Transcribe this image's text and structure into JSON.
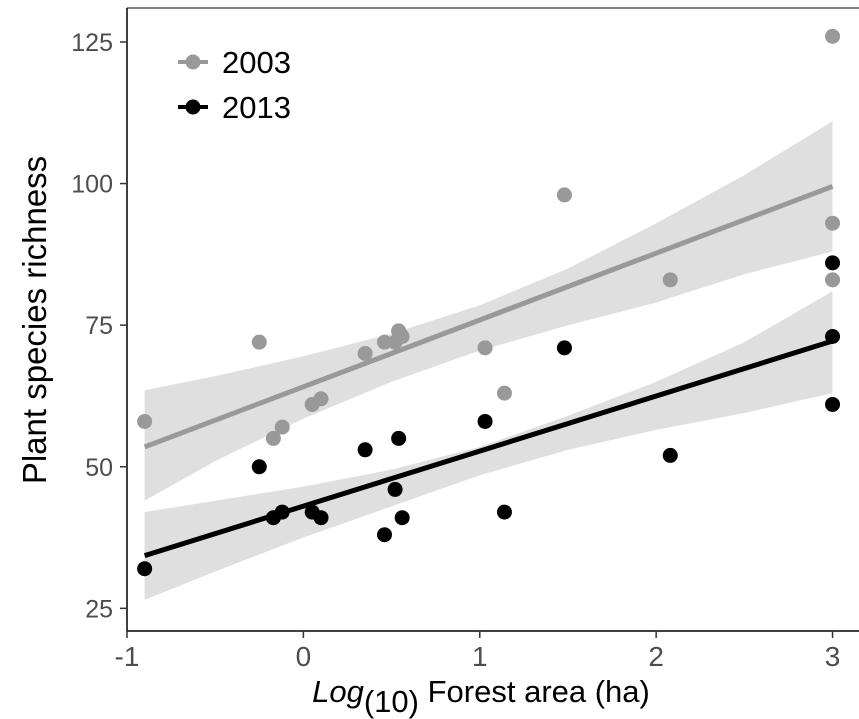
{
  "chart_data": {
    "type": "scatter",
    "title": "",
    "xlabel_italic": "Log",
    "xlabel_sub": "(10)",
    "xlabel_rest": " Forest area (ha)",
    "ylabel": "Plant species richness",
    "xlim": [
      -1.0,
      3.15
    ],
    "ylim": [
      21,
      131
    ],
    "xticks": [
      -1,
      0,
      1,
      2,
      3
    ],
    "xtick_labels": [
      "-1",
      "0",
      "1",
      "2",
      "3"
    ],
    "yticks": [
      25,
      50,
      75,
      100,
      125
    ],
    "ytick_labels": [
      "25",
      "50",
      "75",
      "100",
      "125"
    ],
    "grid": false,
    "legend_position": "top-left",
    "series": [
      {
        "name": "2003",
        "color": "#999999",
        "band_color": "#d9d9d9",
        "points": [
          [
            -0.9,
            58
          ],
          [
            -0.25,
            72
          ],
          [
            -0.17,
            55
          ],
          [
            -0.12,
            57
          ],
          [
            0.05,
            61
          ],
          [
            0.1,
            62
          ],
          [
            0.35,
            70
          ],
          [
            0.46,
            72
          ],
          [
            0.52,
            72
          ],
          [
            0.54,
            74
          ],
          [
            0.56,
            73
          ],
          [
            1.03,
            71
          ],
          [
            1.14,
            63
          ],
          [
            1.48,
            98
          ],
          [
            2.08,
            83
          ],
          [
            3.0,
            126
          ],
          [
            3.0,
            93
          ],
          [
            3.0,
            83
          ]
        ],
        "fit": {
          "x": [
            -0.9,
            3.0
          ],
          "y": [
            53.5,
            99.5
          ]
        },
        "band": {
          "x": [
            -0.9,
            -0.5,
            0,
            0.5,
            1,
            1.5,
            2,
            2.5,
            3.0
          ],
          "lower": [
            44,
            51,
            58.5,
            65,
            70.5,
            75,
            79,
            84,
            88
          ],
          "upper": [
            63.5,
            66,
            69.5,
            73.5,
            78.5,
            85,
            93,
            101.5,
            111
          ]
        }
      },
      {
        "name": "2013",
        "color": "#000000",
        "band_color": "#d9d9d9",
        "points": [
          [
            -0.9,
            32
          ],
          [
            -0.25,
            50
          ],
          [
            -0.17,
            41
          ],
          [
            -0.12,
            42
          ],
          [
            0.05,
            42
          ],
          [
            0.1,
            41
          ],
          [
            0.35,
            53
          ],
          [
            0.46,
            38
          ],
          [
            0.52,
            46
          ],
          [
            0.54,
            55
          ],
          [
            0.56,
            41
          ],
          [
            1.03,
            58
          ],
          [
            1.14,
            42
          ],
          [
            1.48,
            71
          ],
          [
            2.08,
            52
          ],
          [
            3.0,
            86
          ],
          [
            3.0,
            73
          ],
          [
            3.0,
            61
          ]
        ],
        "fit": {
          "x": [
            -0.9,
            3.0
          ],
          "y": [
            34.3,
            72.2
          ]
        },
        "band": {
          "x": [
            -0.9,
            -0.5,
            0,
            0.5,
            1,
            1.5,
            2,
            2.5,
            3.0
          ],
          "lower": [
            26.5,
            31.5,
            37.5,
            43,
            48.5,
            53,
            56.5,
            59.5,
            63
          ],
          "upper": [
            42,
            44,
            46.5,
            49.5,
            53.5,
            59,
            65,
            72,
            81
          ]
        }
      }
    ]
  }
}
